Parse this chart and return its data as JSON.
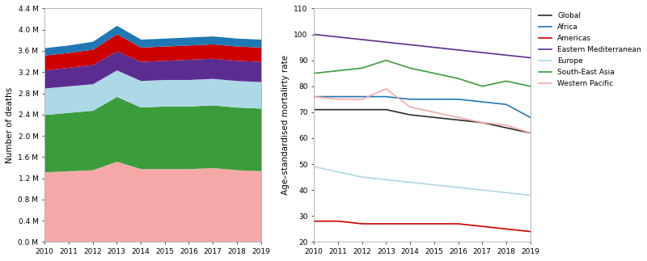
{
  "years": [
    2010,
    2011,
    2012,
    2013,
    2014,
    2015,
    2016,
    2017,
    2018,
    2019
  ],
  "stacked_colors": {
    "Western Pacific": "#F4A9A8",
    "South-East Asia": "#3a9c3a",
    "Europe": "#add8e6",
    "Eastern Mediterranean": "#5c2d91",
    "Americas": "#cc0000",
    "Africa": "#1f77b4"
  },
  "stacked_data": {
    "Western Pacific": [
      1.32,
      1.34,
      1.36,
      1.52,
      1.38,
      1.38,
      1.38,
      1.4,
      1.36,
      1.34
    ],
    "South-East Asia": [
      1.08,
      1.1,
      1.12,
      1.22,
      1.16,
      1.18,
      1.18,
      1.18,
      1.18,
      1.18
    ],
    "Europe": [
      0.5,
      0.5,
      0.5,
      0.5,
      0.5,
      0.5,
      0.5,
      0.5,
      0.5,
      0.5
    ],
    "Eastern Mediterranean": [
      0.34,
      0.35,
      0.36,
      0.36,
      0.36,
      0.36,
      0.38,
      0.38,
      0.38,
      0.38
    ],
    "Americas": [
      0.28,
      0.28,
      0.29,
      0.32,
      0.27,
      0.27,
      0.27,
      0.27,
      0.27,
      0.27
    ],
    "Africa": [
      0.14,
      0.14,
      0.15,
      0.16,
      0.15,
      0.15,
      0.15,
      0.15,
      0.15,
      0.15
    ]
  },
  "stacked_order": [
    "Western Pacific",
    "South-East Asia",
    "Europe",
    "Eastern Mediterranean",
    "Americas",
    "Africa"
  ],
  "line_data": {
    "Global": [
      71,
      71,
      71,
      71,
      69,
      68,
      67,
      66,
      64,
      62
    ],
    "Africa": [
      76,
      76,
      76,
      76,
      75,
      75,
      75,
      74,
      73,
      68
    ],
    "Americas": [
      28,
      28,
      27,
      27,
      27,
      27,
      27,
      26,
      25,
      24
    ],
    "Eastern Mediterranean": [
      100,
      99,
      98,
      97,
      96,
      95,
      94,
      93,
      92,
      91
    ],
    "Europe": [
      49,
      47,
      45,
      44,
      43,
      42,
      41,
      40,
      39,
      38
    ],
    "South-East Asia": [
      85,
      86,
      87,
      90,
      87,
      85,
      83,
      80,
      82,
      80
    ],
    "Western Pacific": [
      76,
      75,
      75,
      79,
      72,
      70,
      68,
      66,
      65,
      62
    ]
  },
  "line_colors": {
    "Global": "#2b2b2b",
    "Africa": "#1f77b4",
    "Americas": "#cc0000",
    "Eastern Mediterranean": "#5c2d91",
    "Europe": "#add8e6",
    "South-East Asia": "#3a9c3a",
    "Western Pacific": "#f4a9a8"
  },
  "legend_order": [
    "Global",
    "Africa",
    "Americas",
    "Eastern Mediterranean",
    "Europe",
    "South-East Asia",
    "Western Pacific"
  ],
  "ylim_left": [
    0.0,
    4.4
  ],
  "yticks_left": [
    0.0,
    0.4,
    0.8,
    1.2,
    1.6,
    2.0,
    2.4,
    2.8,
    3.2,
    3.6,
    4.0,
    4.4
  ],
  "ylim_right": [
    20,
    110
  ],
  "yticks_right": [
    20,
    30,
    40,
    50,
    60,
    70,
    80,
    90,
    100,
    110
  ],
  "ylabel_left": "Number of deaths",
  "ylabel_right": "Age–standardised mortalirty rate",
  "fig_width": 8.0,
  "fig_height": 3.23,
  "dpi": 100
}
